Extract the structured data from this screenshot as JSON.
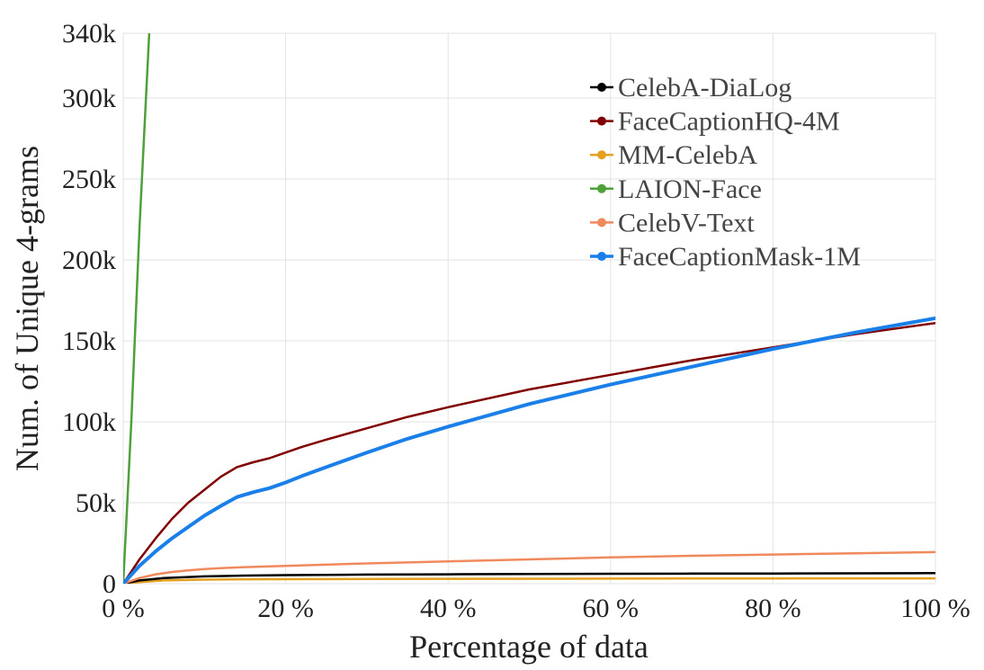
{
  "chart_data": {
    "type": "line",
    "title": "",
    "xlabel": "Percentage of data",
    "ylabel": "Num. of Unique 4-grams",
    "xlim": [
      0,
      100
    ],
    "ylim": [
      0,
      340000
    ],
    "grid": true,
    "legend_position": "top-right",
    "x_ticks": [
      {
        "value": 0,
        "label": "0 %"
      },
      {
        "value": 20,
        "label": "20 %"
      },
      {
        "value": 40,
        "label": "40 %"
      },
      {
        "value": 60,
        "label": "60 %"
      },
      {
        "value": 80,
        "label": "80 %"
      },
      {
        "value": 100,
        "label": "100 %"
      }
    ],
    "y_ticks": [
      {
        "value": 0,
        "label": "0"
      },
      {
        "value": 50000,
        "label": "50k"
      },
      {
        "value": 100000,
        "label": "100k"
      },
      {
        "value": 150000,
        "label": "150k"
      },
      {
        "value": 200000,
        "label": "200k"
      },
      {
        "value": 250000,
        "label": "250k"
      },
      {
        "value": 300000,
        "label": "300k"
      },
      {
        "value": 340000,
        "label": "340k"
      }
    ],
    "series": [
      {
        "name": "CelebA-DiaLog",
        "color": "#000000",
        "x": [
          0,
          2,
          5,
          10,
          15,
          20,
          30,
          40,
          50,
          60,
          70,
          80,
          90,
          100
        ],
        "values": [
          0,
          2000,
          3500,
          4500,
          5000,
          5300,
          5600,
          5800,
          6000,
          6100,
          6200,
          6300,
          6400,
          6500
        ]
      },
      {
        "name": "FaceCaptionHQ-4M",
        "color": "#800000",
        "x": [
          0,
          2,
          4,
          6,
          8,
          10,
          12,
          14,
          16,
          18,
          20,
          22,
          25,
          30,
          35,
          40,
          50,
          60,
          70,
          80,
          90,
          100
        ],
        "values": [
          0,
          15000,
          28000,
          40000,
          50000,
          58000,
          66000,
          72000,
          75000,
          77500,
          81000,
          84500,
          89000,
          96000,
          103000,
          109000,
          120000,
          129000,
          138000,
          146000,
          154000,
          161000
        ]
      },
      {
        "name": "MM-CelebA",
        "color": "#e6a020",
        "x": [
          0,
          2,
          5,
          10,
          15,
          20,
          40,
          60,
          80,
          100
        ],
        "values": [
          0,
          1000,
          2000,
          2500,
          2700,
          2800,
          3000,
          3100,
          3200,
          3300
        ]
      },
      {
        "name": "LAION-Face",
        "color": "#4ea03a",
        "x": [
          0,
          1,
          2,
          3.2
        ],
        "values": [
          0,
          100000,
          220000,
          340000
        ]
      },
      {
        "name": "CelebV-Text",
        "color": "#f08a5d",
        "x": [
          0,
          2,
          4,
          6,
          8,
          10,
          12,
          15,
          20,
          30,
          40,
          50,
          60,
          70,
          80,
          90,
          100
        ],
        "values": [
          0,
          3500,
          5800,
          7200,
          8200,
          9000,
          9600,
          10200,
          11000,
          12500,
          13800,
          15000,
          16200,
          17200,
          18000,
          18700,
          19500
        ]
      },
      {
        "name": "FaceCaptionMask-1M",
        "color": "#1a7fe8",
        "x": [
          0,
          2,
          4,
          6,
          8,
          10,
          12,
          14,
          16,
          18,
          20,
          22,
          25,
          30,
          35,
          40,
          50,
          60,
          70,
          80,
          90,
          100
        ],
        "values": [
          0,
          11000,
          20000,
          28000,
          35000,
          42000,
          48000,
          53500,
          56500,
          59000,
          62500,
          66500,
          72000,
          81000,
          89500,
          97000,
          111000,
          123000,
          134000,
          145000,
          155000,
          164000
        ]
      }
    ]
  }
}
